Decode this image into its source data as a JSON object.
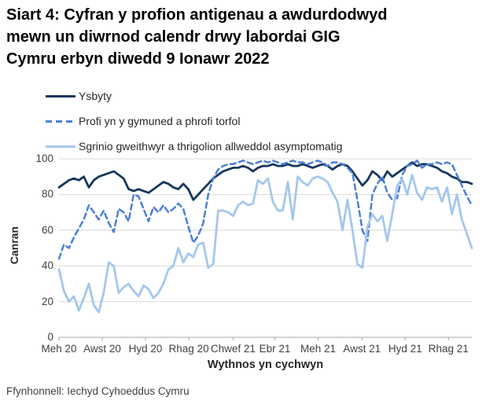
{
  "page": {
    "title_lines": [
      "Siart 4: Cyfran y profion antigenau a awdurdodwyd",
      "mewn un diwrnod calendr drwy labordai GIG",
      "Cymru erbyn diwedd 9 Ionawr 2022"
    ],
    "title_full": "Siart 4: Cyfran y profion antigenau a awdurdodwyd mewn un diwrnod calendr drwy labordai GIG Cymru erbyn diwedd 9 Ionawr 2022",
    "source": "Ffynhonnell: Iechyd Cyhoeddus Cymru"
  },
  "chart_data": {
    "type": "line",
    "title": "Siart 4: Cyfran y profion antigenau a awdurdodwyd mewn un diwrnod calendr drwy labordai GIG Cymru erbyn diwedd 9 Ionawr 2022",
    "xlabel": "Wythnos yn cychwyn",
    "ylabel": "Canran",
    "ylim": [
      0,
      100
    ],
    "y_ticks": [
      0,
      20,
      40,
      60,
      80,
      100
    ],
    "x_unit": "week",
    "n_points": 84,
    "x_tick_labels": [
      "Meh 20",
      "Awst 20",
      "Hyd 20",
      "Rhag 20",
      "Chwef 21",
      "Ebr 21",
      "Meh 21",
      "Awst 21",
      "Hyd 21",
      "Rhag 21"
    ],
    "x_tick_weeks": [
      0,
      8.7,
      17.4,
      26.1,
      35.0,
      43.4,
      52.1,
      60.9,
      69.6,
      78.3
    ],
    "grid": "horizontal",
    "legend_position": "top-left",
    "colors": {
      "grid": "#d9d9d9",
      "axis": "#a6a6a6",
      "text": "#404040"
    },
    "series": [
      {
        "name": "Ysbyty",
        "style": "solid",
        "color": "#17375e",
        "values": [
          84,
          86,
          88,
          89,
          88,
          90,
          84,
          88,
          90,
          91,
          92,
          93,
          91,
          89,
          83,
          82,
          83,
          82,
          81,
          83,
          85,
          87,
          86,
          84,
          83,
          86,
          83,
          77,
          80,
          83,
          86,
          89,
          91,
          93,
          94,
          95,
          95,
          96,
          95,
          93,
          95,
          96,
          96,
          97,
          96,
          96,
          97,
          96,
          96,
          97,
          96,
          95,
          96,
          97,
          96,
          94,
          96,
          97,
          96,
          93,
          89,
          85,
          88,
          93,
          91,
          88,
          93,
          90,
          92,
          94,
          96,
          98,
          96,
          97,
          97,
          96,
          95,
          93,
          92,
          90,
          89,
          87,
          87,
          86
        ]
      },
      {
        "name": "Profi yn y gymuned a phrofi torfol",
        "style": "dashed",
        "color": "#4d7fd8",
        "values": [
          44,
          52,
          50,
          56,
          61,
          66,
          74,
          70,
          66,
          71,
          64,
          59,
          72,
          70,
          65,
          80,
          79,
          72,
          65,
          73,
          70,
          74,
          70,
          72,
          75,
          72,
          62,
          53,
          57,
          64,
          80,
          89,
          94,
          96,
          97,
          97,
          98,
          99,
          98,
          97,
          98,
          99,
          98,
          99,
          98,
          97,
          98,
          99,
          98,
          98,
          97,
          98,
          99,
          98,
          96,
          98,
          98,
          97,
          95,
          92,
          77,
          60,
          54,
          80,
          86,
          90,
          81,
          77,
          78,
          91,
          96,
          97,
          99,
          95,
          97,
          97,
          98,
          97,
          98,
          97,
          91,
          85,
          79,
          74
        ]
      },
      {
        "name": "Sgrinio gweithwyr a thrigolion allweddol asymptomatig",
        "style": "solid",
        "color": "#a4c7ed",
        "values": [
          38,
          26,
          20,
          23,
          15,
          22,
          30,
          18,
          14,
          25,
          42,
          40,
          25,
          28,
          30,
          26,
          23,
          29,
          27,
          22,
          25,
          30,
          38,
          40,
          50,
          42,
          47,
          45,
          52,
          53,
          39,
          41,
          71,
          71,
          70,
          68,
          74,
          76,
          74,
          75,
          88,
          86,
          89,
          76,
          71,
          71,
          87,
          66,
          90,
          87,
          85,
          89,
          90,
          89,
          87,
          81,
          76,
          60,
          77,
          60,
          41,
          39,
          62,
          69,
          65,
          68,
          54,
          69,
          85,
          89,
          80,
          91,
          81,
          77,
          84,
          83,
          84,
          76,
          84,
          69,
          80,
          66,
          58,
          50
        ]
      }
    ]
  }
}
